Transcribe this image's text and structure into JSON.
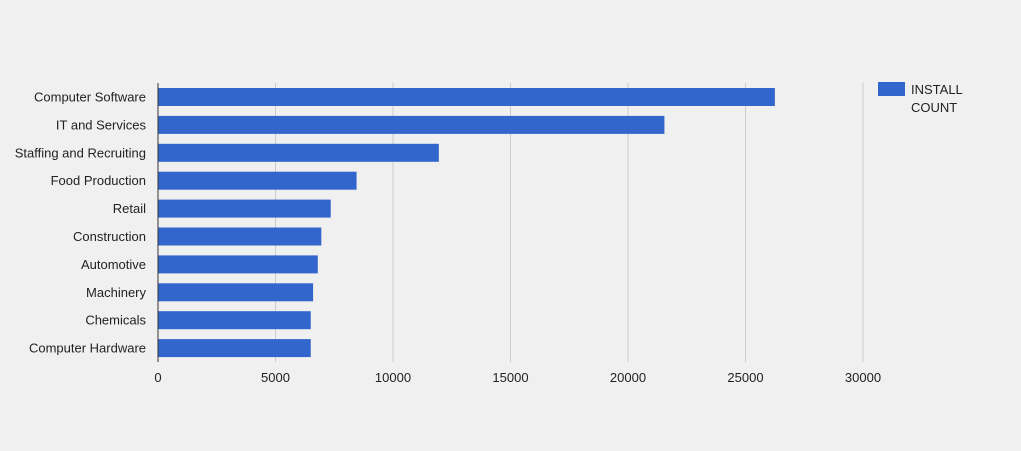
{
  "chart_data": {
    "type": "bar",
    "orientation": "horizontal",
    "categories": [
      "Computer Software",
      "IT and Services",
      "Staffing and Recruiting",
      "Food Production",
      "Retail",
      "Construction",
      "Automotive",
      "Machinery",
      "Chemicals",
      "Computer Hardware"
    ],
    "series": [
      {
        "name": "INSTALL COUNT",
        "values": [
          26250,
          21550,
          11950,
          8450,
          7350,
          6950,
          6800,
          6600,
          6500,
          6500
        ]
      }
    ],
    "xlim": [
      0,
      30000
    ],
    "xticks": [
      0,
      5000,
      10000,
      15000,
      20000,
      25000,
      30000
    ],
    "xtick_labels": [
      "0",
      "5000",
      "10000",
      "15000",
      "20000",
      "25000",
      "30000"
    ],
    "grid": true,
    "legend": {
      "placement": "top-right",
      "lines": [
        "INSTALL",
        "COUNT"
      ]
    },
    "colors": {
      "bar": "#3366cc",
      "grid": "#cccccc",
      "axis": "#333333",
      "background": "#f0f0f0"
    }
  }
}
